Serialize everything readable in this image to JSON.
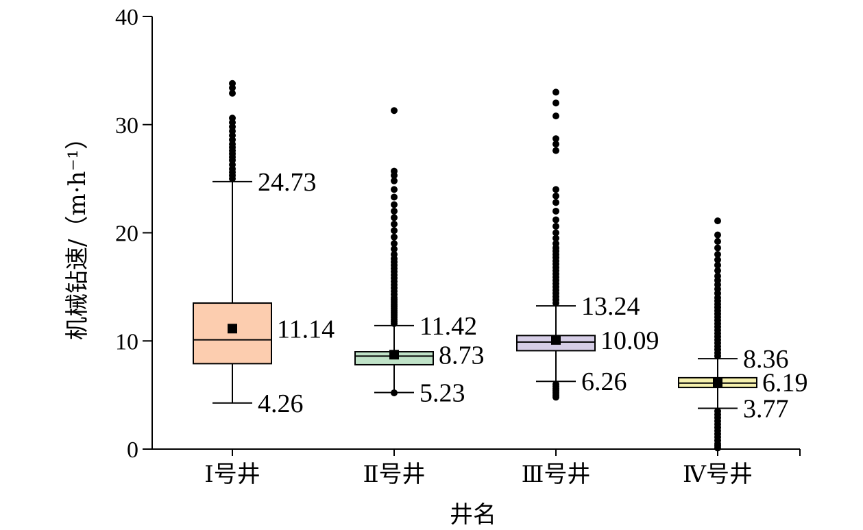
{
  "chart_data": {
    "type": "box",
    "title": "",
    "xlabel": "井名",
    "ylabel": "机械钻速/（m·h⁻¹）",
    "ylim": [
      0,
      40
    ],
    "yticks": [
      0,
      10,
      20,
      30,
      40
    ],
    "grid": false,
    "categories": [
      "Ⅰ号井",
      "Ⅱ号井",
      "Ⅲ号井",
      "Ⅳ号井"
    ],
    "series": [
      {
        "category": "Ⅰ号井",
        "color": "#FCCDAF",
        "whisker_low": 4.26,
        "q1": 7.9,
        "median": 10.1,
        "q3": 13.5,
        "whisker_high": 24.73,
        "mean": 11.14,
        "mean_label": "11.14",
        "high_label": "24.73",
        "low_label": "4.26",
        "outliers_high": [
          25.0,
          25.3,
          25.6,
          25.9,
          26.3,
          26.7,
          27.0,
          27.3,
          27.6,
          27.9,
          28.2,
          28.6,
          29.0,
          29.4,
          29.8,
          30.2,
          30.6,
          32.9,
          33.4,
          33.8
        ],
        "outliers_low": []
      },
      {
        "category": "Ⅱ号井",
        "color": "#BFE2C7",
        "whisker_low": 5.23,
        "q1": 7.8,
        "median": 8.6,
        "q3": 9.0,
        "whisker_high": 11.42,
        "mean": 8.73,
        "mean_label": "8.73",
        "high_label": "11.42",
        "low_label": "5.23",
        "outliers_high": [
          11.6,
          11.8,
          12.0,
          12.2,
          12.4,
          12.6,
          12.8,
          13.0,
          13.2,
          13.4,
          13.6,
          13.8,
          14.0,
          14.3,
          14.6,
          14.9,
          15.2,
          15.5,
          15.8,
          16.1,
          16.4,
          16.7,
          17.0,
          17.3,
          17.6,
          18.0,
          18.5,
          19.0,
          19.6,
          20.2,
          20.8,
          21.4,
          22.0,
          22.6,
          23.3,
          24.0,
          24.8,
          25.3,
          25.7,
          31.3
        ],
        "outliers_low": [
          5.2
        ]
      },
      {
        "category": "Ⅲ号井",
        "color": "#D5CDE6",
        "whisker_low": 6.26,
        "q1": 9.1,
        "median": 9.9,
        "q3": 10.5,
        "whisker_high": 13.24,
        "mean": 10.09,
        "mean_label": "10.09",
        "high_label": "13.24",
        "low_label": "6.26",
        "outliers_high": [
          13.5,
          13.8,
          14.1,
          14.4,
          14.7,
          15.0,
          15.3,
          15.6,
          15.9,
          16.2,
          16.5,
          16.8,
          17.1,
          17.4,
          17.7,
          18.0,
          18.3,
          18.6,
          19.0,
          19.5,
          20.0,
          20.6,
          21.2,
          22.0,
          22.8,
          23.4,
          24.0,
          27.6,
          28.2,
          28.7,
          30.8,
          32.0,
          33.0
        ],
        "outliers_low": [
          6.0,
          5.8,
          5.6,
          5.4,
          5.2,
          5.0,
          4.8
        ]
      },
      {
        "category": "Ⅳ号井",
        "color": "#F5F0AE",
        "whisker_low": 3.77,
        "q1": 5.7,
        "median": 6.1,
        "q3": 6.6,
        "whisker_high": 8.36,
        "mean": 6.19,
        "mean_label": "6.19",
        "high_label": "8.36",
        "low_label": "3.77",
        "outliers_high": [
          8.6,
          8.9,
          9.2,
          9.5,
          9.8,
          10.1,
          10.4,
          10.7,
          11.0,
          11.3,
          11.6,
          11.9,
          12.2,
          12.5,
          12.8,
          13.1,
          13.4,
          13.7,
          14.0,
          14.4,
          14.8,
          15.2,
          15.6,
          16.0,
          16.5,
          17.0,
          17.5,
          18.0,
          18.6,
          19.2,
          19.8,
          21.1
        ],
        "outliers_low": [
          3.5,
          3.2,
          2.9,
          2.6,
          2.3,
          2.0,
          1.7,
          1.4,
          1.1,
          0.8,
          0.5,
          0.3,
          0.1
        ]
      }
    ]
  }
}
